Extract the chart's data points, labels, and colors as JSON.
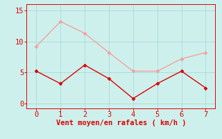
{
  "x": [
    0,
    1,
    2,
    3,
    4,
    5,
    6,
    7
  ],
  "y_mean": [
    5.2,
    3.2,
    6.2,
    4.0,
    0.8,
    3.2,
    5.2,
    2.5
  ],
  "y_gust": [
    9.2,
    13.2,
    11.3,
    8.2,
    5.2,
    5.2,
    7.2,
    8.2
  ],
  "color_mean": "#dd0000",
  "color_gust": "#f4a0a0",
  "xlabel": "Vent moyen/en rafales ( km/h )",
  "xlabel_color": "#dd0000",
  "xlabel_fontsize": 7.5,
  "background_color": "#cef0ec",
  "grid_color": "#aaddda",
  "tick_color": "#dd0000",
  "spine_color": "#dd0000",
  "ylim": [
    -0.8,
    16
  ],
  "xlim": [
    -0.4,
    7.4
  ],
  "yticks": [
    0,
    5,
    10,
    15
  ],
  "xticks": [
    0,
    1,
    2,
    3,
    4,
    5,
    6,
    7
  ],
  "marker": "D",
  "markersize": 2.5,
  "linewidth": 1.0,
  "tick_fontsize": 7.5
}
